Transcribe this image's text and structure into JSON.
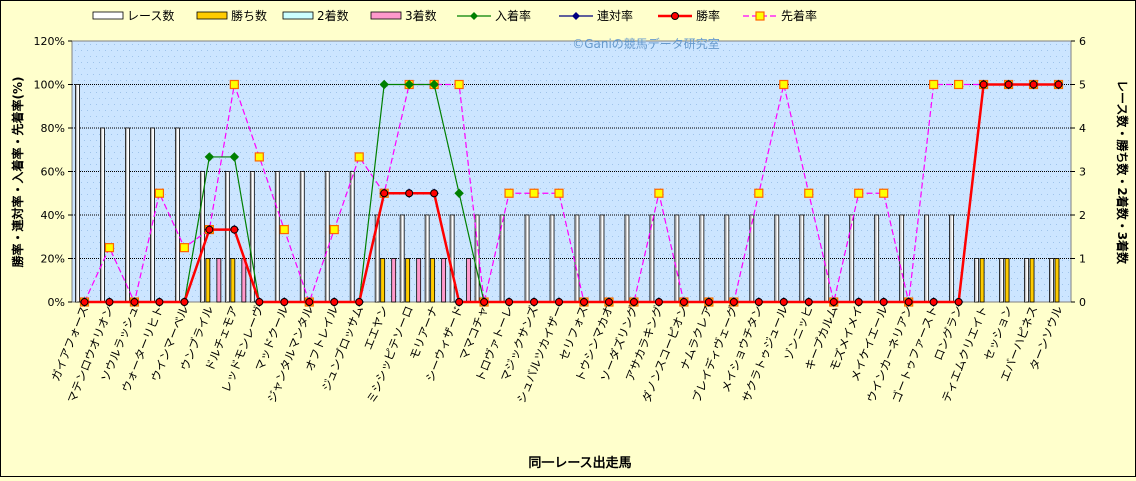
{
  "chart_data": {
    "type": "bar",
    "watermark": "©Ganiの競馬データ研究室",
    "xlabel": "同一レース出走馬",
    "ylabel_left": "勝率・連対率・入着率・先着率(%)",
    "ylabel_right": "レース数・勝ち数・2着数・3着数",
    "ylim_left": [
      0,
      120
    ],
    "ylim_right": [
      0,
      6
    ],
    "left_ticks": [
      "0%",
      "20%",
      "40%",
      "60%",
      "80%",
      "100%",
      "120%"
    ],
    "right_ticks": [
      "0",
      "1",
      "2",
      "3",
      "4",
      "5",
      "6"
    ],
    "grid": true,
    "legend_position": "top",
    "colors": {
      "races": "#ffffff",
      "wins": "#ffcc00",
      "second": "#ccffff",
      "third": "#ff99cc",
      "in_place": "#008000",
      "rentai": "#000080",
      "win_rate": "#ff0000",
      "sakichaku": "#ff00ff",
      "plot_bg": "#cce5ff"
    },
    "categories": [
      "ガイアフォース",
      "マテンロウオリオン",
      "ソウルラッシュ",
      "ウォーターリヒト",
      "ウインマーベル",
      "ウンブライル",
      "ドルチェモア",
      "レッドモンレーヴ",
      "マッドクール",
      "ジャンタルマンタル",
      "オフトレイル",
      "ジュンブロッサム",
      "エエヤン",
      "ミシシッピテソーロ",
      "モリアーナ",
      "シーウィザード",
      "ママコチャ",
      "トロヴァトーレ",
      "マジックサンズ",
      "シュバルツカイザー",
      "セリフォス",
      "トウシンマカオ",
      "ソーダズリング",
      "アサカラキング",
      "ダノンスコーピオン",
      "ナムラクレア",
      "ブレイディヴェーグ",
      "メイショウチタン",
      "サクラトゥジュール",
      "ゾンニッヒ",
      "キープカルム",
      "モズメイメイ",
      "メイケイエール",
      "ウインカーネリアン",
      "ゴートゥファースト",
      "ロングラン",
      "ティエムクリエイト",
      "セッション",
      "エバーハピネス",
      "ターンソウル"
    ],
    "series": [
      {
        "name": "レース数",
        "axis": "right",
        "kind": "bar",
        "values": [
          5,
          4,
          4,
          4,
          4,
          3,
          3,
          3,
          3,
          3,
          3,
          3,
          2,
          2,
          2,
          2,
          2,
          2,
          2,
          2,
          2,
          2,
          2,
          2,
          2,
          2,
          2,
          2,
          2,
          2,
          2,
          2,
          2,
          2,
          2,
          2,
          1,
          1,
          1,
          1
        ]
      },
      {
        "name": "勝ち数",
        "axis": "right",
        "kind": "bar",
        "values": [
          0,
          0,
          0,
          0,
          0,
          1,
          1,
          0,
          0,
          0,
          0,
          0,
          1,
          1,
          1,
          0,
          0,
          0,
          0,
          0,
          0,
          0,
          0,
          0,
          0,
          0,
          0,
          0,
          0,
          0,
          0,
          0,
          0,
          0,
          0,
          0,
          1,
          1,
          1,
          1
        ]
      },
      {
        "name": "2着数",
        "axis": "right",
        "kind": "bar",
        "values": [
          0,
          0,
          0,
          0,
          0,
          0,
          0,
          0,
          0,
          0,
          0,
          0,
          0,
          0,
          0,
          0,
          0,
          0,
          0,
          0,
          0,
          0,
          0,
          0,
          0,
          0,
          0,
          0,
          0,
          0,
          0,
          0,
          0,
          0,
          0,
          0,
          0,
          0,
          0,
          0
        ]
      },
      {
        "name": "3着数",
        "axis": "right",
        "kind": "bar",
        "values": [
          0,
          0,
          0,
          0,
          0,
          1,
          1,
          0,
          0,
          0,
          0,
          0,
          1,
          1,
          1,
          1,
          0,
          0,
          0,
          0,
          0,
          0,
          0,
          0,
          0,
          0,
          0,
          0,
          0,
          0,
          0,
          0,
          0,
          0,
          0,
          0,
          0,
          0,
          0,
          0
        ]
      },
      {
        "name": "入着率",
        "axis": "left",
        "kind": "line",
        "values": [
          0,
          0,
          0,
          0,
          0,
          66.7,
          66.7,
          0,
          0,
          0,
          0,
          0,
          100,
          100,
          100,
          50,
          0,
          0,
          0,
          0,
          0,
          0,
          0,
          0,
          0,
          0,
          0,
          0,
          0,
          0,
          0,
          0,
          0,
          0,
          0,
          0,
          100,
          100,
          100,
          100
        ]
      },
      {
        "name": "連対率",
        "axis": "left",
        "kind": "line",
        "values": [
          0,
          0,
          0,
          0,
          0,
          33.3,
          33.3,
          0,
          0,
          0,
          0,
          0,
          50,
          50,
          50,
          0,
          0,
          0,
          0,
          0,
          0,
          0,
          0,
          0,
          0,
          0,
          0,
          0,
          0,
          0,
          0,
          0,
          0,
          0,
          0,
          0,
          100,
          100,
          100,
          100
        ]
      },
      {
        "name": "勝率",
        "axis": "left",
        "kind": "line",
        "values": [
          0,
          0,
          0,
          0,
          0,
          33.3,
          33.3,
          0,
          0,
          0,
          0,
          0,
          50,
          50,
          50,
          0,
          0,
          0,
          0,
          0,
          0,
          0,
          0,
          0,
          0,
          0,
          0,
          0,
          0,
          0,
          0,
          0,
          0,
          0,
          0,
          0,
          100,
          100,
          100,
          100
        ]
      },
      {
        "name": "先着率",
        "axis": "left",
        "kind": "line",
        "values": [
          0,
          25,
          0,
          50,
          25,
          33.3,
          100,
          66.7,
          33.3,
          0,
          33.3,
          66.7,
          50,
          100,
          100,
          100,
          0,
          50,
          50,
          50,
          0,
          0,
          0,
          50,
          0,
          0,
          0,
          50,
          100,
          50,
          0,
          50,
          50,
          0,
          100,
          100,
          100,
          100,
          100,
          100
        ]
      }
    ]
  }
}
